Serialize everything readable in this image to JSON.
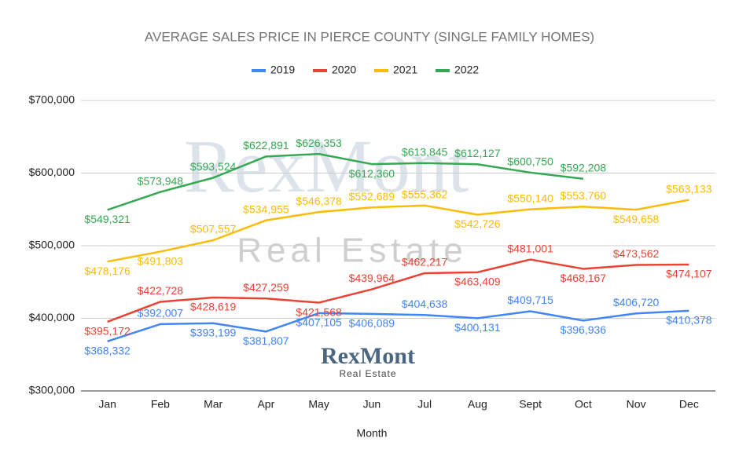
{
  "chart_data": {
    "type": "line",
    "title": "AVERAGE SALES PRICE IN PIERCE COUNTY (SINGLE FAMILY HOMES)",
    "x_label": "Month",
    "categories": [
      "Jan",
      "Feb",
      "Mar",
      "Apr",
      "May",
      "Jun",
      "Jul",
      "Aug",
      "Sept",
      "Oct",
      "Nov",
      "Dec"
    ],
    "series": [
      {
        "name": "2019",
        "color": "#4285f4",
        "values": [
          368332,
          392007,
          393199,
          381807,
          407105,
          406089,
          404638,
          400131,
          409715,
          396936,
          406720,
          410378
        ],
        "value_labels": [
          "$368,332",
          "$392,007",
          "$393,199",
          "$381,807",
          "$407,105",
          "$406,089",
          "$404,638",
          "$400,131",
          "$409,715",
          "$396,936",
          "$406,720",
          "$410,378"
        ]
      },
      {
        "name": "2020",
        "color": "#ea4335",
        "values": [
          395172,
          422728,
          428619,
          427259,
          421568,
          439964,
          462217,
          463409,
          481001,
          468167,
          473562,
          474107
        ],
        "value_labels": [
          "$395,172",
          "$422,728",
          "$428,619",
          "$427,259",
          "$421,568",
          "$439,964",
          "$462,217",
          "$463,409",
          "$481,001",
          "$468,167",
          "$473,562",
          "$474,107"
        ]
      },
      {
        "name": "2021",
        "color": "#fbbc04",
        "values": [
          478176,
          491803,
          507557,
          534955,
          546378,
          552689,
          555362,
          542726,
          550140,
          553760,
          549658,
          563133
        ],
        "value_labels": [
          "$478,176",
          "$491,803",
          "$507,557",
          "$534,955",
          "$546,378",
          "$552,689",
          "$555,362",
          "$542,726",
          "$550,140",
          "$553,760",
          "$549,658",
          "$563,133"
        ]
      },
      {
        "name": "2022",
        "color": "#34a853",
        "values": [
          549321,
          573948,
          593524,
          622891,
          626353,
          612360,
          613845,
          612127,
          600750,
          592208,
          null,
          null
        ],
        "value_labels": [
          "$549,321",
          "$573,948",
          "$593,524",
          "$622,891",
          "$626,353",
          "$612,360",
          "$613,845",
          "$612,127",
          "$600,750",
          "$592,208",
          null,
          null
        ]
      }
    ],
    "ylim": [
      300000,
      700000
    ],
    "yticks": [
      {
        "value": 300000,
        "label": "$300,000"
      },
      {
        "value": 400000,
        "label": "$400,000"
      },
      {
        "value": 500000,
        "label": "$500,000"
      },
      {
        "value": 600000,
        "label": "$600,000"
      },
      {
        "value": 700000,
        "label": "$700,000"
      }
    ],
    "grid": true,
    "legend": "top",
    "watermark": {
      "title": "RexMont",
      "subtitle": "Real Estate"
    },
    "logo": {
      "title": "RexMont",
      "subtitle": "Real Estate"
    }
  }
}
